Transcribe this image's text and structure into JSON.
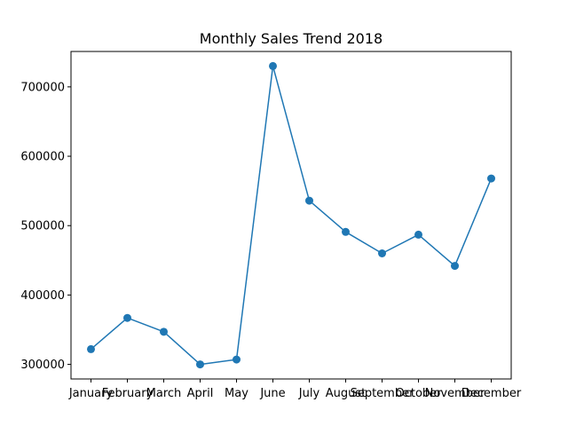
{
  "chart_data": {
    "type": "line",
    "title": "Monthly Sales Trend 2018",
    "xlabel": "",
    "ylabel": "",
    "categories": [
      "January",
      "February",
      "March",
      "April",
      "May",
      "June",
      "July",
      "August",
      "September",
      "October",
      "November",
      "December"
    ],
    "series": [
      {
        "values": [
          322000,
          367000,
          347000,
          300000,
          307000,
          730000,
          536000,
          491000,
          460000,
          487000,
          442000,
          568000
        ]
      }
    ],
    "ylim": [
      279000,
      751000
    ],
    "yticks": [
      300000,
      400000,
      500000,
      600000,
      700000
    ],
    "ytick_labels": [
      "300000",
      "400000",
      "500000",
      "600000",
      "700000"
    ],
    "grid": false,
    "markers": "circle",
    "colors": {
      "series": "#1f77b4",
      "axis": "#000000"
    }
  }
}
